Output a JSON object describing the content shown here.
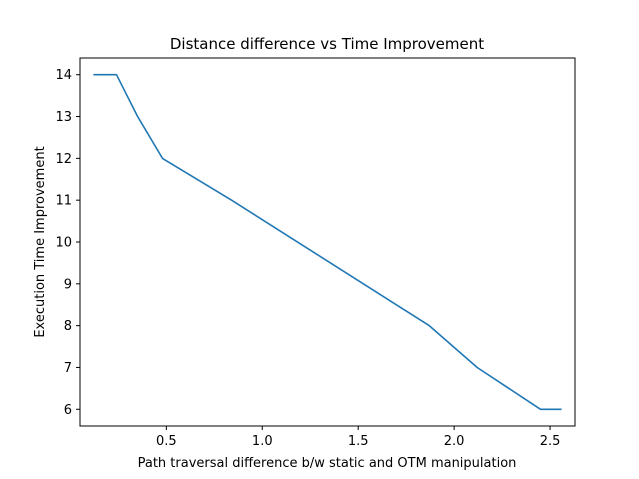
{
  "chart_data": {
    "type": "line",
    "title": "Distance difference vs Time Improvement",
    "xlabel": "Path traversal difference b/w static and OTM manipulation",
    "ylabel": "Execution Time Improvement",
    "xlim": [
      0.05,
      2.63
    ],
    "ylim": [
      5.6,
      14.4
    ],
    "xticks": [
      0.5,
      1.0,
      1.5,
      2.0,
      2.5
    ],
    "xtick_labels": [
      "0.5",
      "1.0",
      "1.5",
      "2.0",
      "2.5"
    ],
    "yticks": [
      6,
      7,
      8,
      9,
      10,
      11,
      12,
      13,
      14
    ],
    "ytick_labels": [
      "6",
      "7",
      "8",
      "9",
      "10",
      "11",
      "12",
      "13",
      "14"
    ],
    "grid": false,
    "series": [
      {
        "color": "#1f77b4",
        "x": [
          0.12,
          0.24,
          0.35,
          0.48,
          0.84,
          1.87,
          2.12,
          2.45,
          2.56
        ],
        "y": [
          14,
          14,
          13,
          12,
          11,
          8,
          7,
          6,
          6
        ]
      }
    ]
  }
}
